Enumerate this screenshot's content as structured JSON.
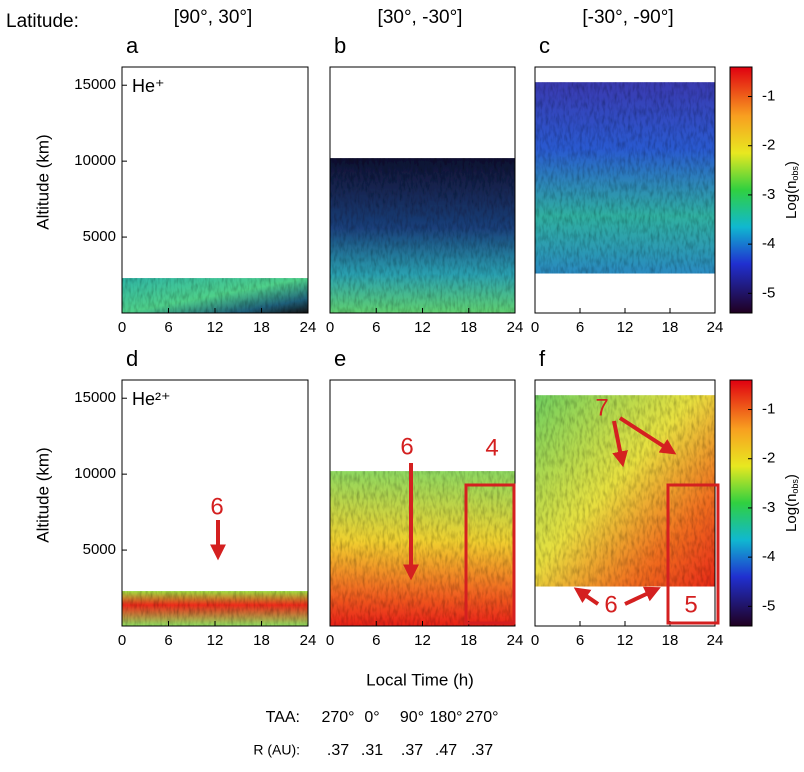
{
  "figure_title": "Latitude:",
  "column_headers": [
    "[90°, 30°]",
    "[30°, -30°]",
    "[-30°, -90°]"
  ],
  "x_label": "Local Time (h)",
  "footer": {
    "taa_label": "TAA:",
    "taa_values": [
      "270°",
      "0°",
      "90°",
      "180°",
      "270°"
    ],
    "r_label": "R (AU):",
    "r_values": [
      ".37",
      ".31",
      ".37",
      ".47",
      ".37"
    ]
  },
  "chart_data": [
    {
      "type": "heatmap",
      "panel": "a",
      "ion": "He⁺",
      "y_label": "Altitude (km)",
      "xlim": [
        0,
        24
      ],
      "xticks": [
        0,
        6,
        12,
        18,
        24
      ],
      "ylim": [
        0,
        16200
      ],
      "yticks": [
        5000,
        10000,
        15000
      ],
      "coverage": [
        0,
        2300
      ],
      "annotations": []
    },
    {
      "type": "heatmap",
      "panel": "b",
      "xlim": [
        0,
        24
      ],
      "xticks": [
        0,
        6,
        12,
        18,
        24
      ],
      "ylim": [
        0,
        16200
      ],
      "coverage": [
        0,
        10200
      ],
      "annotations": []
    },
    {
      "type": "heatmap",
      "panel": "c",
      "xlim": [
        0,
        24
      ],
      "xticks": [
        0,
        6,
        12,
        18,
        24
      ],
      "ylim": [
        0,
        16200
      ],
      "coverage": [
        2600,
        15200
      ],
      "annotations": [],
      "colorbar": {
        "clim": [
          -5.4,
          -0.4
        ],
        "ticks": [
          -1,
          -2,
          -3,
          -4,
          -5
        ],
        "label_parts": [
          "Log(n",
          "obs",
          ")"
        ]
      }
    },
    {
      "type": "heatmap",
      "panel": "d",
      "ion": "He²⁺",
      "y_label": "Altitude (km)",
      "xlim": [
        0,
        24
      ],
      "xticks": [
        0,
        6,
        12,
        18,
        24
      ],
      "ylim": [
        0,
        16200
      ],
      "yticks": [
        5000,
        10000,
        15000
      ],
      "coverage": [
        0,
        2300
      ],
      "annotations": [
        "6"
      ]
    },
    {
      "type": "heatmap",
      "panel": "e",
      "xlim": [
        0,
        24
      ],
      "xticks": [
        0,
        6,
        12,
        18,
        24
      ],
      "ylim": [
        0,
        16200
      ],
      "coverage": [
        0,
        10200
      ],
      "annotations": [
        "6",
        "4"
      ]
    },
    {
      "type": "heatmap",
      "panel": "f",
      "xlim": [
        0,
        24
      ],
      "xticks": [
        0,
        6,
        12,
        18,
        24
      ],
      "ylim": [
        0,
        16200
      ],
      "coverage": [
        2600,
        15200
      ],
      "annotations": [
        "7",
        "6",
        "5"
      ],
      "colorbar": {
        "clim": [
          -5.4,
          -0.4
        ],
        "ticks": [
          -1,
          -2,
          -3,
          -4,
          -5
        ],
        "label_parts": [
          "Log(n",
          "obs",
          ")"
        ]
      }
    }
  ]
}
